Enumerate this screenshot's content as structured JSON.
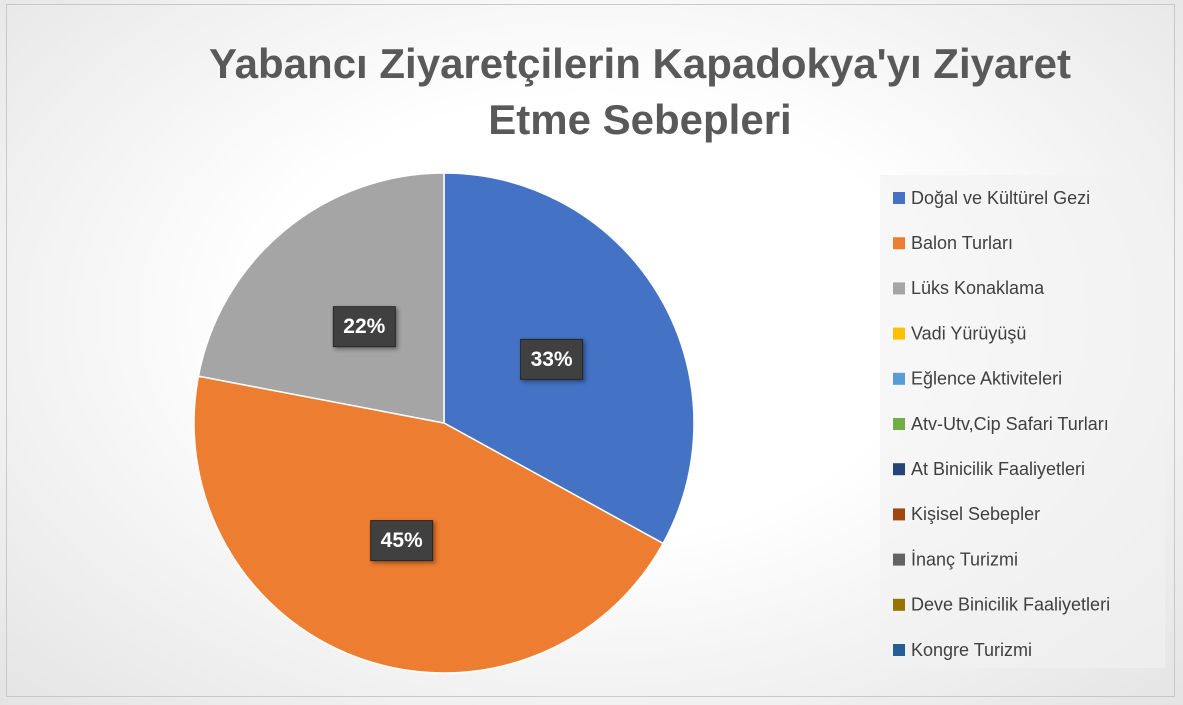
{
  "chart_data": {
    "type": "pie",
    "title": "Yabancı Ziyaretçilerin Kapadokya'yı Ziyaret Etme Sebepleri",
    "categories": [
      "Doğal ve Kültürel Gezi",
      "Balon Turları",
      "Lüks Konaklama",
      "Vadi Yürüyüşü",
      "Eğlence Aktiviteleri",
      "Atv-Utv,Cip Safari Turları",
      "At Binicilik Faaliyetleri",
      "Kişisel Sebepler",
      "İnanç Turizmi",
      "Deve Binicilik Faaliyetleri",
      "Kongre Turizmi"
    ],
    "values": [
      33,
      45,
      22,
      0,
      0,
      0,
      0,
      0,
      0,
      0,
      0
    ],
    "value_labels": [
      "33%",
      "45%",
      "22%",
      null,
      null,
      null,
      null,
      null,
      null,
      null,
      null
    ],
    "colors": [
      "#4472c4",
      "#ed7d31",
      "#a5a5a5",
      "#ffc000",
      "#5b9bd5",
      "#70ad47",
      "#264478",
      "#9e480e",
      "#636363",
      "#997300",
      "#255e91"
    ],
    "legend": "right"
  }
}
